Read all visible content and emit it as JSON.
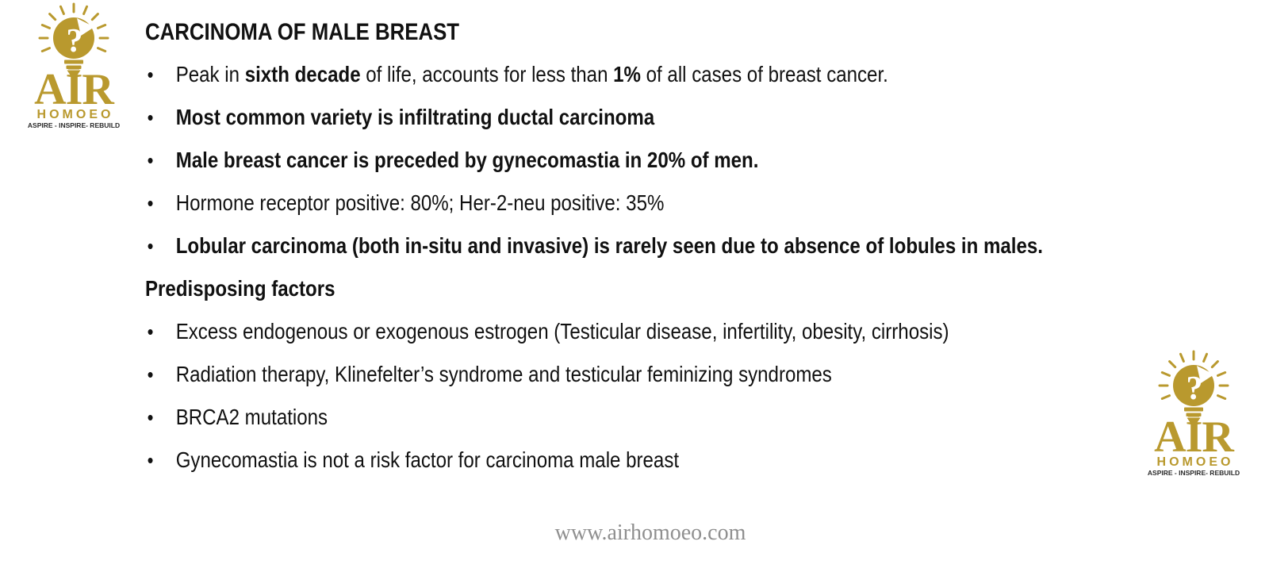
{
  "slide": {
    "title": "CARCINOMA OF MALE BREAST",
    "bullet_glyph": "•",
    "content": [
      {
        "type": "bullet",
        "segments": [
          {
            "t": "Peak in ",
            "b": 0
          },
          {
            "t": "sixth decade",
            "b": 1
          },
          {
            "t": " of life, accounts for less than ",
            "b": 0
          },
          {
            "t": "1%",
            "b": 1
          },
          {
            "t": " of all cases of breast cancer.",
            "b": 0
          }
        ]
      },
      {
        "type": "bullet",
        "segments": [
          {
            "t": "Most common variety is infiltrating ductal carcinoma",
            "b": 1
          }
        ]
      },
      {
        "type": "bullet",
        "segments": [
          {
            "t": "Male breast cancer is preceded by gynecomastia in 20% of men.",
            "b": 1
          }
        ]
      },
      {
        "type": "bullet",
        "segments": [
          {
            "t": "Hormone receptor positive: 80%; Her-2-neu positive: 35%",
            "b": 0
          }
        ]
      },
      {
        "type": "bullet",
        "segments": [
          {
            "t": "Lobular carcinoma (both in-situ and invasive) is rarely seen due to absence of lobules in males.",
            "b": 1
          }
        ]
      },
      {
        "type": "heading",
        "segments": [
          {
            "t": "Predisposing factors",
            "b": 1
          }
        ]
      },
      {
        "type": "bullet",
        "segments": [
          {
            "t": "Excess endogenous or exogenous estrogen (Testicular disease, infertility, obesity, cirrhosis)",
            "b": 0
          }
        ]
      },
      {
        "type": "bullet",
        "segments": [
          {
            "t": "Radiation therapy, Klinefelter’s syndrome and testicular feminizing syndromes",
            "b": 0
          }
        ]
      },
      {
        "type": "bullet",
        "segments": [
          {
            "t": "BRCA2 mutations",
            "b": 0
          }
        ]
      },
      {
        "type": "bullet",
        "segments": [
          {
            "t": "Gynecomastia is not a risk factor for carcinoma male breast",
            "b": 0
          }
        ]
      }
    ],
    "footer_url": "www.airhomoeo.com"
  },
  "logo": {
    "acronym": "AIR",
    "word": "HOMOEO",
    "tagline": "ASPIRE - INSPIRE- REBUILD",
    "question_mark": "?"
  },
  "colors": {
    "logo_gold": "#B9992E",
    "body_text": "#111111",
    "footer_text": "#8F8F8F",
    "tagline_text": "#2B2B2B",
    "background": "#FFFFFF"
  }
}
